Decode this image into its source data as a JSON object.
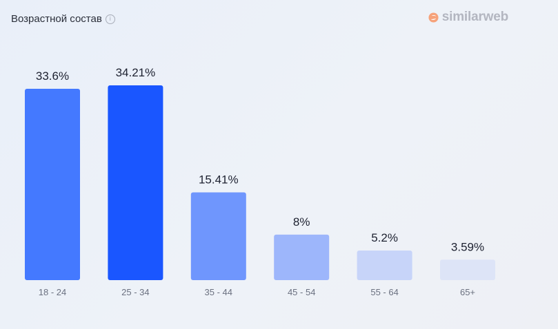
{
  "header": {
    "title": "Возрастной состав",
    "info_icon": "info-icon",
    "brand": "similarweb"
  },
  "chart_data": {
    "type": "bar",
    "title": "Возрастной состав",
    "categories": [
      "18 - 24",
      "25 - 34",
      "35 - 44",
      "45 - 54",
      "55 - 64",
      "65+"
    ],
    "values": [
      33.6,
      34.21,
      15.41,
      8,
      5.2,
      3.59
    ],
    "data_labels": [
      "33.6%",
      "34.21%",
      "15.41%",
      "8%",
      "5.2%",
      "3.59%"
    ],
    "colors": [
      "#4479ff",
      "#1a56ff",
      "#6f96fd",
      "#9db6fb",
      "#c7d4f9",
      "#dde4f7"
    ],
    "ylim": [
      0,
      34.21
    ],
    "grid": false,
    "legend": "none"
  }
}
